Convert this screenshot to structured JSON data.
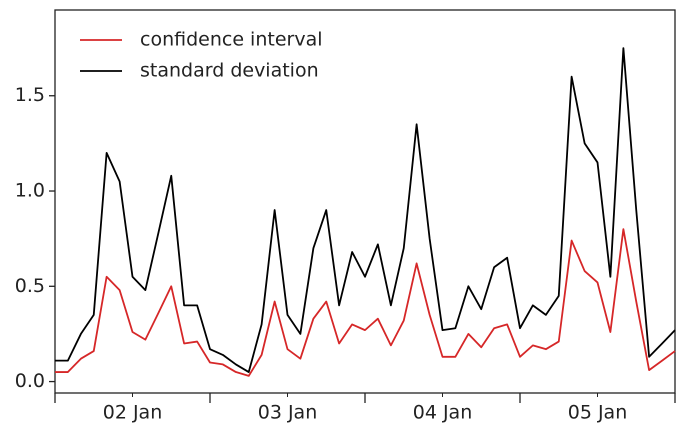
{
  "chart_data": {
    "type": "line",
    "x": [
      2,
      2.083,
      2.167,
      2.25,
      2.333,
      2.417,
      2.5,
      2.583,
      2.667,
      2.75,
      2.833,
      2.917,
      3,
      3.083,
      3.167,
      3.25,
      3.333,
      3.417,
      3.5,
      3.583,
      3.667,
      3.75,
      3.833,
      3.917,
      4,
      4.083,
      4.167,
      4.25,
      4.333,
      4.417,
      4.5,
      4.583,
      4.667,
      4.75,
      4.833,
      4.917,
      5,
      5.083,
      5.167,
      5.25,
      5.333,
      5.417,
      5.5,
      5.583,
      5.667,
      5.75,
      5.833,
      5.917,
      6
    ],
    "series": [
      {
        "name": "confidence interval",
        "color": "#d62728",
        "values": [
          0.05,
          0.05,
          0.12,
          0.16,
          0.55,
          0.48,
          0.26,
          0.22,
          0.36,
          0.5,
          0.2,
          0.21,
          0.1,
          0.09,
          0.05,
          0.03,
          0.14,
          0.42,
          0.17,
          0.12,
          0.33,
          0.42,
          0.2,
          0.3,
          0.27,
          0.33,
          0.19,
          0.32,
          0.62,
          0.35,
          0.13,
          0.13,
          0.25,
          0.18,
          0.28,
          0.3,
          0.13,
          0.19,
          0.17,
          0.21,
          0.74,
          0.58,
          0.52,
          0.26,
          0.8,
          0.42,
          0.06,
          0.11,
          0.16
        ]
      },
      {
        "name": "standard deviation",
        "color": "#000000",
        "values": [
          0.11,
          0.11,
          0.25,
          0.35,
          1.2,
          1.05,
          0.55,
          0.48,
          0.78,
          1.08,
          0.4,
          0.4,
          0.17,
          0.14,
          0.09,
          0.05,
          0.3,
          0.9,
          0.35,
          0.25,
          0.7,
          0.9,
          0.4,
          0.68,
          0.55,
          0.72,
          0.4,
          0.7,
          1.35,
          0.75,
          0.27,
          0.28,
          0.5,
          0.38,
          0.6,
          0.65,
          0.28,
          0.4,
          0.35,
          0.45,
          1.6,
          1.25,
          1.15,
          0.55,
          1.75,
          0.9,
          0.13,
          0.2,
          0.27
        ]
      }
    ],
    "xlim": [
      2,
      6
    ],
    "xticks": [
      {
        "value": 2.5,
        "label": "02 Jan"
      },
      {
        "value": 3.5,
        "label": "03 Jan"
      },
      {
        "value": 4.5,
        "label": "04 Jan"
      },
      {
        "value": 5.5,
        "label": "05 Jan"
      }
    ],
    "xmajorticks": [
      2,
      3,
      4,
      5,
      6
    ],
    "ylim": [
      -0.06,
      1.95
    ],
    "yticks": [
      {
        "value": 0,
        "label": "0.0"
      },
      0.5,
      {
        "value": 1,
        "label": "1.0"
      },
      1.5
    ],
    "legend": "upper left"
  }
}
